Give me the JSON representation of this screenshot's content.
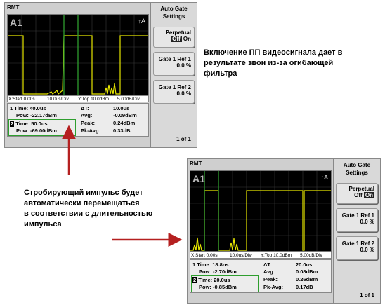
{
  "screens": [
    {
      "title": "RMT",
      "trace_label": "A1",
      "marker_label": "A",
      "scale": {
        "start": "X:Start 0.00s",
        "xdiv": "10.0us/Div",
        "ytop": "Y:Top 10.0dBm",
        "ydiv": "5.00dB/Div"
      },
      "gate1": {
        "time_label": "1 Time:",
        "time_value": "40.0us",
        "pow_label": "Pow:",
        "pow_value": "-22.17dBm"
      },
      "gate2": {
        "num": "2",
        "time_label": "Time:",
        "time_value": "50.0us",
        "pow_label": "Pow:",
        "pow_value": "-69.00dBm"
      },
      "stats": {
        "dt_label": "ΔT:",
        "dt_value": "10.0us",
        "avg_label": "Avg:",
        "avg_value": "-0.09dBm",
        "peak_label": "Peak:",
        "peak_value": "0.24dBm",
        "pkavg_label": "Pk-Avg:",
        "pkavg_value": "0.33dB"
      },
      "side": {
        "title": "Auto Gate Settings",
        "perpetual": "Perpetual",
        "off": "Off",
        "on": "On",
        "ref1": "Gate 1 Ref 1",
        "ref1_val": "0.0 %",
        "ref2": "Gate 1 Ref 2",
        "ref2_val": "0.0 %",
        "page": "1 of 1"
      }
    },
    {
      "title": "RMT",
      "trace_label": "A1",
      "marker_label": "A",
      "scale": {
        "start": "X:Start 0.00s",
        "xdiv": "10.0us/Div",
        "ytop": "Y:Top 10.0dBm",
        "ydiv": "5.00dB/Div"
      },
      "gate1": {
        "time_label": "1 Time:",
        "time_value": "18.8ns",
        "pow_label": "Pow:",
        "pow_value": "-2.70dBm"
      },
      "gate2": {
        "num": "2",
        "time_label": "Time:",
        "time_value": "20.0us",
        "pow_label": "Pow:",
        "pow_value": "-0.85dBm"
      },
      "stats": {
        "dt_label": "ΔT:",
        "dt_value": "20.0us",
        "avg_label": "Avg:",
        "avg_value": "0.08dBm",
        "peak_label": "Peak:",
        "peak_value": "0.26dBm",
        "pkavg_label": "Pk-Avg:",
        "pkavg_value": "0.17dB"
      },
      "side": {
        "title": "Auto Gate Settings",
        "perpetual": "Perpetual",
        "off": "Off",
        "on": "On",
        "ref1": "Gate 1 Ref 1",
        "ref1_val": "0.0 %",
        "ref2": "Gate 1 Ref 2",
        "ref2_val": "0.0 %",
        "page": "1 of 1"
      }
    }
  ],
  "annotations": {
    "top_right": [
      "Включение ПП видеосигнала дает в",
      "результате звон из-за огибающей",
      "фильтра"
    ],
    "middle_left": [
      "Стробирующий импульс будет",
      "автоматически перемещаться",
      "в соответствии с длительностью",
      "импульса"
    ]
  },
  "colors": {
    "trace": "#e6e600",
    "gate": "#2e9e2e",
    "arrow": "#b52020"
  }
}
